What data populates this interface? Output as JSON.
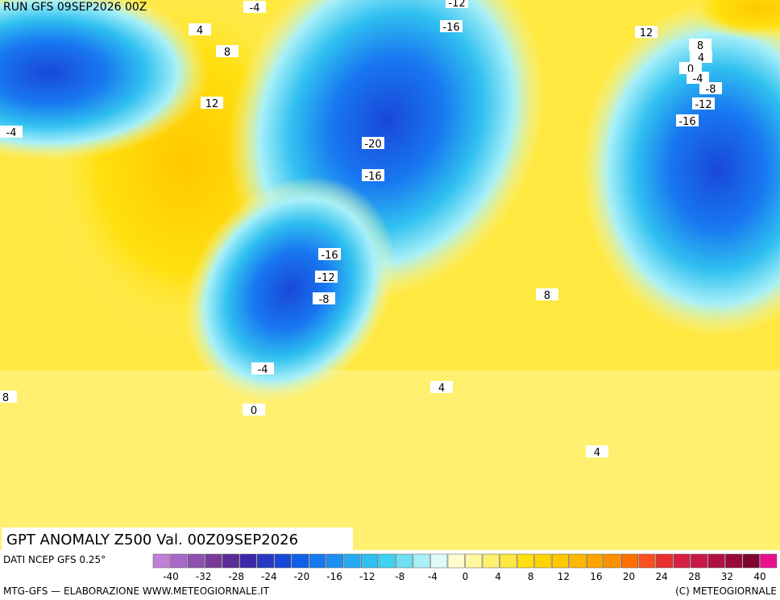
{
  "header": {
    "run": "RUN GFS 09SEP2026 00Z"
  },
  "title": "GPT ANOMALY Z500 Val. 00Z09SEP2026",
  "source": "DATI NCEP GFS 0.25°",
  "credit_left": "MTG-GFS — ELABORAZIONE WWW.METEOGIORNALE.IT",
  "credit_right": "(C) METEOGIORNALE",
  "colorbar": {
    "colors": [
      "#c080d8",
      "#a868c8",
      "#9050b0",
      "#783c98",
      "#5a2c98",
      "#3c28a8",
      "#2838c0",
      "#1848d8",
      "#1060e8",
      "#1878f0",
      "#2090f0",
      "#28a8f0",
      "#30c0f0",
      "#40d0f0",
      "#70e0f0",
      "#a8f0f8",
      "#e0fafa",
      "#fffcd0",
      "#fff8a0",
      "#fff070",
      "#ffe840",
      "#ffe010",
      "#ffd400",
      "#ffc800",
      "#ffb800",
      "#ffa400",
      "#ff9000",
      "#ff7000",
      "#f85020",
      "#e83030",
      "#d82040",
      "#c81848",
      "#b01040",
      "#980838",
      "#800430",
      "#e8108c"
    ],
    "labels": [
      "-40",
      "-32",
      "-28",
      "-24",
      "-20",
      "-16",
      "-12",
      "-8",
      "-4",
      "0",
      "4",
      "8",
      "12",
      "16",
      "20",
      "24",
      "28",
      "32",
      "40"
    ]
  },
  "contour_labels": [
    "-4",
    "4",
    "8",
    "12",
    "-4",
    "-12",
    "-16",
    "-20",
    "-16",
    "-16",
    "-12",
    "-8",
    "-4",
    "0",
    "8",
    "4",
    "8",
    "4",
    "12",
    "8",
    "4",
    "0",
    "-4",
    "-8",
    "-12",
    "-16"
  ]
}
